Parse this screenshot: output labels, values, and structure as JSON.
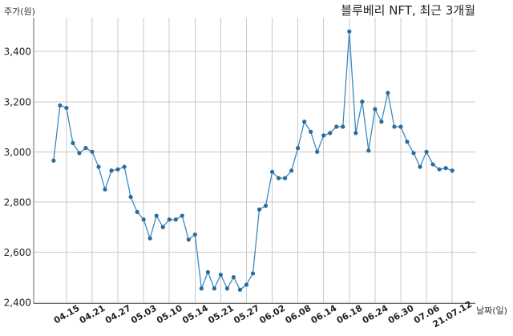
{
  "chart_data": {
    "type": "line",
    "title": "블루베리 NFT, 최근 3개월",
    "xlabel": "날짜(일)",
    "ylabel": "주가(원)",
    "x": [
      "21.04.13",
      "21.04.14",
      "21.04.15",
      "21.04.16",
      "21.04.19",
      "21.04.20",
      "21.04.21",
      "21.04.22",
      "21.04.23",
      "21.04.26",
      "21.04.27",
      "21.04.28",
      "21.04.29",
      "21.04.30",
      "21.05.03",
      "21.05.04",
      "21.05.06",
      "21.05.07",
      "21.05.10",
      "21.05.11",
      "21.05.12",
      "21.05.13",
      "21.05.14",
      "21.05.17",
      "21.05.18",
      "21.05.20",
      "21.05.21",
      "21.05.24",
      "21.05.25",
      "21.05.26",
      "21.05.27",
      "21.05.28",
      "21.05.31",
      "21.06.01",
      "21.06.02",
      "21.06.03",
      "21.06.04",
      "21.06.07",
      "21.06.08",
      "21.06.09",
      "21.06.10",
      "21.06.11",
      "21.06.14",
      "21.06.15",
      "21.06.16",
      "21.06.17",
      "21.06.18",
      "21.06.21",
      "21.06.22",
      "21.06.23",
      "21.06.24",
      "21.06.25",
      "21.06.28",
      "21.06.29",
      "21.06.30",
      "21.07.01",
      "21.07.02",
      "21.07.05",
      "21.07.06",
      "21.07.07",
      "21.07.08",
      "21.07.09",
      "21.07.12"
    ],
    "y": [
      2965,
      3185,
      3175,
      3035,
      2995,
      3015,
      3000,
      2940,
      2850,
      2925,
      2930,
      2940,
      2820,
      2760,
      2730,
      2655,
      2745,
      2700,
      2730,
      2730,
      2745,
      2650,
      2670,
      2455,
      2520,
      2455,
      2510,
      2455,
      2500,
      2450,
      2470,
      2515,
      2770,
      2785,
      2920,
      2895,
      2895,
      2925,
      3015,
      3120,
      3080,
      3000,
      3065,
      3075,
      3100,
      3100,
      3480,
      3075,
      3200,
      3005,
      3170,
      3120,
      3235,
      3100,
      3100,
      3040,
      2995,
      2940,
      3000,
      2950,
      2930,
      2935,
      2925
    ],
    "xticks": [
      "04.15",
      "04.21",
      "04.27",
      "05.03",
      "05.10",
      "05.14",
      "05.21",
      "05.27",
      "06.02",
      "06.08",
      "06.14",
      "06.18",
      "06.24",
      "06.30",
      "07.06",
      "21.07.12"
    ],
    "yticks": [
      2400,
      2600,
      2800,
      3000,
      3200,
      3400
    ],
    "ylim": [
      2395,
      3535
    ],
    "grid": true,
    "legend": "none",
    "line_color": "#3b8bc2",
    "marker_color": "#2b6c9a"
  }
}
